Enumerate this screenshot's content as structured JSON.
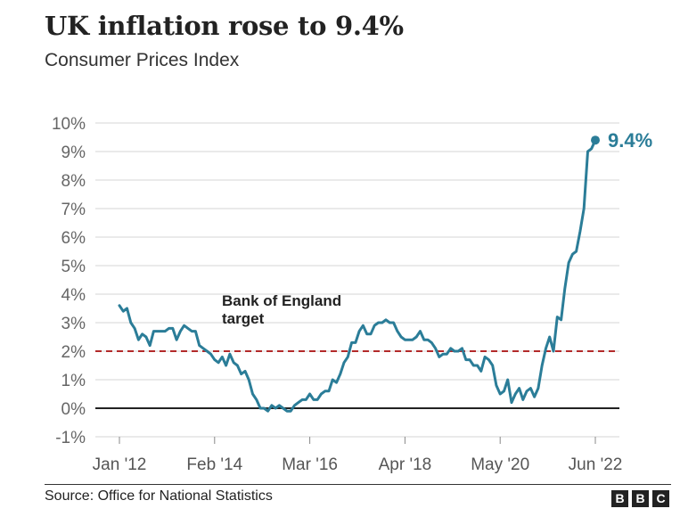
{
  "chart_data": {
    "type": "line",
    "title": "UK inflation rose to 9.4%",
    "subtitle": "Consumer Prices Index",
    "ylim": [
      -1,
      10
    ],
    "yticks": [
      -1,
      0,
      1,
      2,
      3,
      4,
      5,
      6,
      7,
      8,
      9,
      10
    ],
    "ytick_labels": [
      "-1%",
      "0%",
      "1%",
      "2%",
      "3%",
      "4%",
      "5%",
      "6%",
      "7%",
      "8%",
      "9%",
      "10%"
    ],
    "xticks": [
      {
        "label": "Jan '12",
        "date": "2012-01"
      },
      {
        "label": "Feb '14",
        "date": "2014-02"
      },
      {
        "label": "Mar '16",
        "date": "2016-03"
      },
      {
        "label": "Apr '18",
        "date": "2018-04"
      },
      {
        "label": "May '20",
        "date": "2020-05"
      },
      {
        "label": "Jun '22",
        "date": "2022-06"
      }
    ],
    "grid": true,
    "reference_line": {
      "value": 2,
      "label": "Bank of England target",
      "color": "#b32a2a"
    },
    "end_label": "9.4%",
    "series": [
      {
        "color": "#2b7d98",
        "start": "2012-01",
        "frequency": "monthly",
        "values": [
          3.6,
          3.4,
          3.5,
          3.0,
          2.8,
          2.4,
          2.6,
          2.5,
          2.2,
          2.7,
          2.7,
          2.7,
          2.7,
          2.8,
          2.8,
          2.4,
          2.7,
          2.9,
          2.8,
          2.7,
          2.7,
          2.2,
          2.1,
          2.0,
          1.9,
          1.7,
          1.6,
          1.8,
          1.5,
          1.9,
          1.6,
          1.5,
          1.2,
          1.3,
          1.0,
          0.5,
          0.3,
          0.0,
          0.0,
          -0.1,
          0.1,
          0.0,
          0.1,
          0.0,
          -0.1,
          -0.1,
          0.1,
          0.2,
          0.3,
          0.3,
          0.5,
          0.3,
          0.3,
          0.5,
          0.6,
          0.6,
          1.0,
          0.9,
          1.2,
          1.6,
          1.8,
          2.3,
          2.3,
          2.7,
          2.9,
          2.6,
          2.6,
          2.9,
          3.0,
          3.0,
          3.1,
          3.0,
          3.0,
          2.7,
          2.5,
          2.4,
          2.4,
          2.4,
          2.5,
          2.7,
          2.4,
          2.4,
          2.3,
          2.1,
          1.8,
          1.9,
          1.9,
          2.1,
          2.0,
          2.0,
          2.1,
          1.7,
          1.7,
          1.5,
          1.5,
          1.3,
          1.8,
          1.7,
          1.5,
          0.8,
          0.5,
          0.6,
          1.0,
          0.2,
          0.5,
          0.7,
          0.3,
          0.6,
          0.7,
          0.4,
          0.7,
          1.5,
          2.1,
          2.5,
          2.0,
          3.2,
          3.1,
          4.2,
          5.1,
          5.4,
          5.5,
          6.2,
          7.0,
          9.0,
          9.1,
          9.4
        ]
      }
    ],
    "source": "Source: Office for National Statistics"
  },
  "footer": {
    "source": "Source: Office for National Statistics",
    "logo_letters": [
      "B",
      "B",
      "C"
    ]
  }
}
